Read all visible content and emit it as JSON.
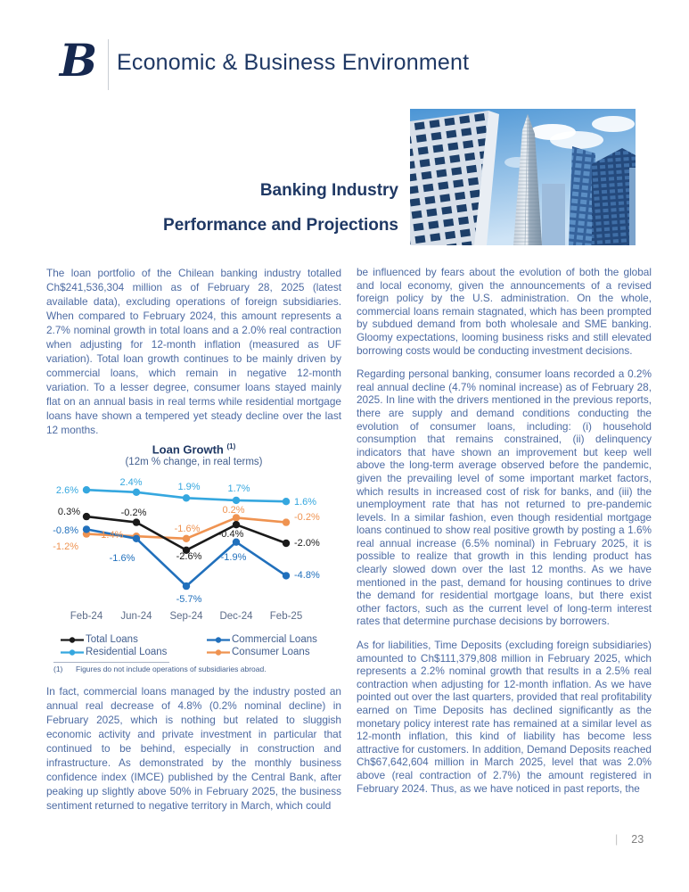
{
  "header": {
    "logo_letter": "B",
    "title": "Economic & Business Environment"
  },
  "hero": {
    "title_line1": "Banking Industry",
    "title_line2": "Performance and Projections"
  },
  "left_column": {
    "paragraphs": [
      "The loan portfolio of the Chilean banking industry totalled Ch$241,536,304 million as of February 28, 2025 (latest available data), excluding operations of foreign subsidiaries. When compared to February 2024, this amount represents a 2.7% nominal growth in total loans and a 2.0% real contraction when adjusting for 12-month inflation (measured as UF variation). Total loan growth continues to be mainly driven by commercial loans, which remain in negative 12-month variation. To a lesser degree, consumer loans stayed mainly flat on an annual basis in real terms while residential mortgage loans have shown a tempered yet steady decline over the last 12 months.",
      "In fact, commercial loans managed by the industry posted an annual real decrease of 4.8% (0.2% nominal decline) in February 2025, which is nothing but related to sluggish economic activity and private investment in particular that continued to be behind, especially in construction and infrastructure. As demonstrated by the monthly business confidence index (IMCE) published by the Central Bank, after peaking up slightly above 50% in February 2025, the business sentiment returned to negative territory in March, which could"
    ]
  },
  "right_column": {
    "paragraphs": [
      "be influenced by fears about the evolution of both the global and local economy, given the announcements of a revised foreign policy by the U.S. administration. On the whole, commercial loans remain stagnated, which has been prompted by subdued demand from both wholesale and SME banking. Gloomy expectations, looming business risks and still elevated borrowing costs would be conducting investment decisions.",
      "Regarding personal banking, consumer loans recorded a 0.2% real annual decline (4.7% nominal increase) as of February 28, 2025. In line with the drivers mentioned in the previous reports, there are supply and demand conditions conducting the evolution of consumer loans, including: (i) household consumption that remains constrained, (ii) delinquency indicators that have shown an improvement but keep well above the long-term average observed before the pandemic, given the prevailing level of some important market factors, which results in increased cost of risk for banks, and (iii) the unemployment rate that has not returned to pre-pandemic levels. In a similar fashion, even though residential mortgage loans continued to show real positive growth by posting a 1.6% real annual increase (6.5% nominal) in February 2025, it is possible to realize that growth in this lending product has clearly slowed down over the last 12 months. As we have mentioned in the past, demand for housing continues to drive the demand for residential mortgage loans, but there exist other factors, such as the current level of long-term interest rates that determine purchase decisions by borrowers.",
      "As for liabilities, Time Deposits (excluding foreign subsidiaries) amounted to Ch$111,379,808 million in February 2025, which represents a 2.2% nominal growth that results in a 2.5% real contraction when adjusting for 12-month inflation. As we have pointed out over the last quarters, provided that real profitability earned on Time Deposits has declined significantly as the monetary policy interest rate has remained at a similar level as 12-month inflation, this kind of liability has become less attractive for customers. In addition, Demand Deposits reached Ch$67,642,604 million in March 2025, level that was 2.0% above (real contraction of 2.7%) the amount registered in February 2024. Thus, as we have noticed in past reports, the"
    ]
  },
  "chart_data": {
    "type": "line",
    "title": "Loan Growth",
    "title_superscript": "(1)",
    "subtitle": "(12m % change, in real terms)",
    "categories": [
      "Feb-24",
      "Jun-24",
      "Sep-24",
      "Dec-24",
      "Feb-25"
    ],
    "series": [
      {
        "name": "Total Loans",
        "color": "#1a1a1a",
        "values": [
          0.3,
          -0.2,
          -2.6,
          -0.4,
          -2.0
        ]
      },
      {
        "name": "Commercial Loans",
        "color": "#2170bc",
        "values": [
          -0.8,
          -1.6,
          -5.7,
          -1.9,
          -4.8
        ]
      },
      {
        "name": "Residential Loans",
        "color": "#35a7df",
        "values": [
          2.6,
          2.4,
          1.9,
          1.7,
          1.6
        ]
      },
      {
        "name": "Consumer Loans",
        "color": "#ef9351",
        "values": [
          -1.2,
          -1.4,
          -1.6,
          0.2,
          -0.2
        ]
      }
    ],
    "value_suffix": "%",
    "grid": false,
    "legend_position": "bottom",
    "footnote_marker": "(1)",
    "footnote_text": "Figures do not include operations of subsidiaries abroad."
  },
  "footer": {
    "separator": "|",
    "page_number": "23"
  },
  "colors": {
    "heading_navy": "#1f3864",
    "body_text_blue": "#4d6ba3",
    "axis_label_gray": "#5c6c88"
  }
}
